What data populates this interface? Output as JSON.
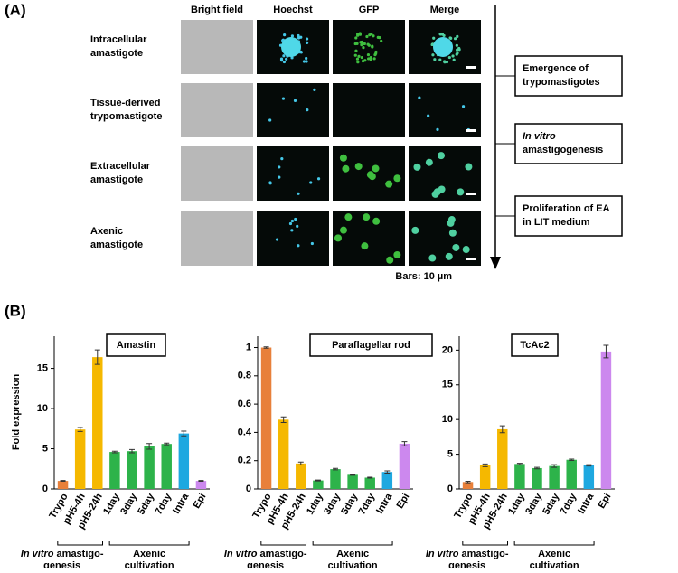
{
  "panel_a": {
    "label": "(A)",
    "columns": [
      "Bright field",
      "Hoechst",
      "GFP",
      "Merge"
    ],
    "rows": [
      [
        "Intracellular",
        "amastigote"
      ],
      [
        "Tissue-derived",
        "trypomastigote"
      ],
      [
        "Extracellular",
        "amastigote"
      ],
      [
        "Axenic",
        "amastigote"
      ]
    ],
    "steps": [
      {
        "lines": [
          "Emergence of",
          "trypomastigotes"
        ]
      },
      {
        "italic": "In vitro",
        "lines": [
          "amastigogenesis"
        ]
      },
      {
        "lines": [
          "Proliferation of EA",
          "in LIT medium"
        ]
      }
    ],
    "scale_note": "Bars: 10 µm"
  },
  "panel_b": {
    "label": "(B)",
    "y_label": "Fold expression",
    "groups": [
      {
        "italic": "In vitro",
        "rest": " amastigo-",
        "line2": "genesis"
      },
      {
        "line1": "Axenic",
        "line2": "cultivation"
      }
    ]
  },
  "chart_data": [
    {
      "type": "bar",
      "title": "Amastin",
      "categories": [
        "Trypo",
        "pH5-4h",
        "pH5-24h",
        "1day",
        "3day",
        "5day",
        "7day",
        "Intra",
        "Epi"
      ],
      "values": [
        1,
        7.4,
        16.4,
        4.6,
        4.7,
        5.3,
        5.6,
        6.9,
        1
      ],
      "errors": [
        0.05,
        0.25,
        0.9,
        0.1,
        0.2,
        0.35,
        0.1,
        0.3,
        0.05
      ],
      "colors": [
        "#e8803a",
        "#f5b800",
        "#f5b800",
        "#2db34a",
        "#2db34a",
        "#2db34a",
        "#2db34a",
        "#1ea8e0",
        "#cc88ee"
      ],
      "ylim": [
        0,
        19
      ],
      "yticks": [
        0,
        5,
        10,
        15
      ]
    },
    {
      "type": "bar",
      "title": "Paraflagellar rod",
      "categories": [
        "Trypo",
        "pH5-4h",
        "pH5-24h",
        "1day",
        "3day",
        "5day",
        "7day",
        "Intra",
        "Epi"
      ],
      "values": [
        1,
        0.49,
        0.18,
        0.06,
        0.14,
        0.1,
        0.08,
        0.12,
        0.32
      ],
      "errors": [
        0.005,
        0.02,
        0.01,
        0.003,
        0.005,
        0.003,
        0.003,
        0.008,
        0.015
      ],
      "colors": [
        "#e8803a",
        "#f5b800",
        "#f5b800",
        "#2db34a",
        "#2db34a",
        "#2db34a",
        "#2db34a",
        "#1ea8e0",
        "#cc88ee"
      ],
      "ylim": [
        0,
        1.08
      ],
      "yticks": [
        0,
        0.2,
        0.4,
        0.6,
        0.8,
        1
      ]
    },
    {
      "type": "bar",
      "title": "TcAc2",
      "categories": [
        "Trypo",
        "pH5-4h",
        "pH5-24h",
        "1day",
        "3day",
        "5day",
        "7day",
        "Intra",
        "Epi"
      ],
      "values": [
        1,
        3.4,
        8.6,
        3.6,
        3,
        3.3,
        4.2,
        3.4,
        19.8
      ],
      "errors": [
        0.1,
        0.2,
        0.5,
        0.1,
        0.1,
        0.2,
        0.1,
        0.1,
        0.9
      ],
      "colors": [
        "#e8803a",
        "#f5b800",
        "#f5b800",
        "#2db34a",
        "#2db34a",
        "#2db34a",
        "#2db34a",
        "#1ea8e0",
        "#cc88ee"
      ],
      "ylim": [
        0,
        22
      ],
      "yticks": [
        0,
        5,
        10,
        15,
        20
      ]
    }
  ]
}
